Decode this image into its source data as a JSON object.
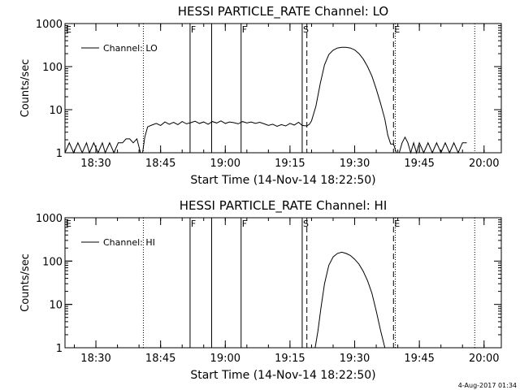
{
  "footer_timestamp": "4-Aug-2017 01:34",
  "chart_data": [
    {
      "type": "line",
      "title": "HESSI PARTICLE_RATE Channel: LO",
      "xlabel": "Start Time (14-Nov-14 18:22:50)",
      "ylabel": "Counts/sec",
      "y_scale": "log",
      "ylim": [
        1,
        1000
      ],
      "xlim": [
        "18:22:50",
        "20:04:00"
      ],
      "x_ticks": [
        "18:30",
        "18:45",
        "19:00",
        "19:15",
        "19:30",
        "19:45",
        "20:00"
      ],
      "y_ticks": [
        "1",
        "10",
        "100",
        "1000"
      ],
      "legend": {
        "position": "top-left",
        "entries": [
          "Channel: LO"
        ]
      },
      "markers": [
        {
          "label": "E",
          "time": "18:22:50",
          "style": "dotted"
        },
        {
          "label": "",
          "time": "18:41:00",
          "style": "dotted"
        },
        {
          "label": "F",
          "time": "18:51:50",
          "style": "solid"
        },
        {
          "label": "",
          "time": "18:56:50",
          "style": "solid"
        },
        {
          "label": "F",
          "time": "19:03:40",
          "style": "solid"
        },
        {
          "label": "S",
          "time": "19:17:50",
          "style": "solid"
        },
        {
          "label": "",
          "time": "19:18:55",
          "style": "dashed"
        },
        {
          "label": "E",
          "time": "19:39:00",
          "style": "dashed"
        },
        {
          "label": "",
          "time": "19:39:25",
          "style": "dotted"
        },
        {
          "label": "",
          "time": "19:57:50",
          "style": "dotted"
        }
      ],
      "series": [
        {
          "name": "Channel: LO",
          "segments": [
            [
              [
                "18:22:50",
                1
              ],
              [
                "18:23:50",
                1.7
              ],
              [
                "18:24:50",
                1
              ],
              [
                "18:25:50",
                1.7
              ],
              [
                "18:26:50",
                1
              ],
              [
                "18:27:50",
                1.7
              ],
              [
                "18:28:30",
                1
              ],
              [
                "18:29:30",
                1.7
              ],
              [
                "18:30:30",
                1
              ],
              [
                "18:31:30",
                1.7
              ],
              [
                "18:32:10",
                1
              ],
              [
                "18:33:10",
                1.7
              ],
              [
                "18:34:10",
                1
              ],
              [
                "18:35:10",
                1.7
              ],
              [
                "18:36:10",
                1.7
              ],
              [
                "18:37:00",
                2.1
              ],
              [
                "18:37:50",
                2.1
              ],
              [
                "18:38:40",
                1.7
              ],
              [
                "18:39:30",
                2.1
              ],
              [
                "18:40:20",
                1
              ],
              [
                "18:40:50",
                1
              ],
              [
                "18:41:20",
                2.3
              ],
              [
                "18:42:00",
                4
              ],
              [
                "18:43:00",
                4.4
              ],
              [
                "18:44:00",
                4.8
              ],
              [
                "18:45:00",
                4.3
              ],
              [
                "18:46:00",
                5.2
              ],
              [
                "18:47:00",
                4.6
              ],
              [
                "18:48:00",
                5.1
              ],
              [
                "18:49:00",
                4.5
              ],
              [
                "18:50:00",
                5.3
              ],
              [
                "18:51:00",
                4.7
              ],
              [
                "18:52:00",
                5
              ],
              [
                "18:53:00",
                5.4
              ],
              [
                "18:54:00",
                4.8
              ],
              [
                "18:55:00",
                5.2
              ],
              [
                "18:56:00",
                4.6
              ],
              [
                "18:57:00",
                5.3
              ],
              [
                "18:58:00",
                4.9
              ],
              [
                "18:59:00",
                5.5
              ],
              [
                "19:00:00",
                4.8
              ],
              [
                "19:01:00",
                5.2
              ],
              [
                "19:02:00",
                5
              ],
              [
                "19:03:00",
                4.7
              ],
              [
                "19:04:00",
                5.3
              ],
              [
                "19:05:00",
                4.9
              ],
              [
                "19:06:00",
                5.2
              ],
              [
                "19:07:00",
                4.8
              ],
              [
                "19:08:00",
                5.1
              ],
              [
                "19:09:00",
                4.7
              ],
              [
                "19:10:00",
                4.3
              ],
              [
                "19:11:00",
                4.6
              ],
              [
                "19:12:00",
                4.1
              ],
              [
                "19:13:00",
                4.5
              ],
              [
                "19:14:00",
                4.2
              ],
              [
                "19:15:00",
                4.8
              ],
              [
                "19:16:00",
                4.4
              ],
              [
                "19:17:00",
                5.1
              ],
              [
                "19:17:50",
                4.3
              ],
              [
                "19:18:55",
                4.2
              ],
              [
                "19:19:30",
                4.6
              ],
              [
                "19:20:00",
                5.5
              ],
              [
                "19:21:00",
                12
              ],
              [
                "19:22:00",
                40
              ],
              [
                "19:23:00",
                110
              ],
              [
                "19:24:00",
                190
              ],
              [
                "19:25:00",
                240
              ],
              [
                "19:26:00",
                270
              ],
              [
                "19:27:00",
                280
              ],
              [
                "19:28:00",
                280
              ],
              [
                "19:29:00",
                270
              ],
              [
                "19:30:00",
                245
              ],
              [
                "19:31:00",
                200
              ],
              [
                "19:32:00",
                150
              ],
              [
                "19:33:00",
                100
              ],
              [
                "19:34:00",
                60
              ],
              [
                "19:35:00",
                30
              ],
              [
                "19:36:00",
                14
              ],
              [
                "19:37:00",
                6
              ],
              [
                "19:37:40",
                2.6
              ],
              [
                "19:38:20",
                1.6
              ],
              [
                "19:39:00",
                1.6
              ],
              [
                "19:39:40",
                1
              ],
              [
                "19:40:20",
                1
              ],
              [
                "19:41:00",
                1.7
              ],
              [
                "19:41:40",
                2.3
              ],
              [
                "19:42:20",
                1.7
              ],
              [
                "19:43:00",
                1
              ],
              [
                "19:43:40",
                1.7
              ],
              [
                "19:44:20",
                1
              ],
              [
                "19:45:00",
                1.7
              ],
              [
                "19:46:00",
                1
              ],
              [
                "19:47:00",
                1.7
              ],
              [
                "19:48:00",
                1
              ],
              [
                "19:49:00",
                1.7
              ],
              [
                "19:50:00",
                1
              ],
              [
                "19:51:00",
                1.7
              ],
              [
                "19:52:00",
                1
              ],
              [
                "19:53:00",
                1.7
              ],
              [
                "19:54:00",
                1
              ],
              [
                "19:55:00",
                1.7
              ],
              [
                "19:56:00",
                1.7
              ]
            ]
          ]
        }
      ]
    },
    {
      "type": "line",
      "title": "HESSI PARTICLE_RATE Channel: HI",
      "xlabel": "Start Time (14-Nov-14 18:22:50)",
      "ylabel": "Counts/sec",
      "y_scale": "log",
      "ylim": [
        1,
        1000
      ],
      "xlim": [
        "18:22:50",
        "20:04:00"
      ],
      "x_ticks": [
        "18:30",
        "18:45",
        "19:00",
        "19:15",
        "19:30",
        "19:45",
        "20:00"
      ],
      "y_ticks": [
        "1",
        "10",
        "100",
        "1000"
      ],
      "legend": {
        "position": "top-left",
        "entries": [
          "Channel: HI"
        ]
      },
      "markers": [
        {
          "label": "E",
          "time": "18:22:50",
          "style": "dotted"
        },
        {
          "label": "",
          "time": "18:41:00",
          "style": "dotted"
        },
        {
          "label": "F",
          "time": "18:51:50",
          "style": "solid"
        },
        {
          "label": "",
          "time": "18:56:50",
          "style": "solid"
        },
        {
          "label": "F",
          "time": "19:03:40",
          "style": "solid"
        },
        {
          "label": "S",
          "time": "19:17:50",
          "style": "solid"
        },
        {
          "label": "",
          "time": "19:18:55",
          "style": "dashed"
        },
        {
          "label": "E",
          "time": "19:39:00",
          "style": "dashed"
        },
        {
          "label": "",
          "time": "19:39:25",
          "style": "dotted"
        },
        {
          "label": "",
          "time": "19:57:50",
          "style": "dotted"
        }
      ],
      "series": [
        {
          "name": "Channel: HI",
          "segments": [
            [
              [
                "19:20:50",
                1
              ],
              [
                "19:21:30",
                2.5
              ],
              [
                "19:22:10",
                8
              ],
              [
                "19:23:00",
                30
              ],
              [
                "19:24:00",
                80
              ],
              [
                "19:25:00",
                125
              ],
              [
                "19:26:00",
                150
              ],
              [
                "19:27:00",
                160
              ],
              [
                "19:28:00",
                150
              ],
              [
                "19:29:00",
                135
              ],
              [
                "19:30:00",
                110
              ],
              [
                "19:31:00",
                85
              ],
              [
                "19:32:00",
                58
              ],
              [
                "19:33:00",
                35
              ],
              [
                "19:34:00",
                18
              ],
              [
                "19:35:00",
                7
              ],
              [
                "19:36:00",
                2.5
              ],
              [
                "19:37:00",
                1
              ]
            ]
          ]
        }
      ]
    }
  ]
}
